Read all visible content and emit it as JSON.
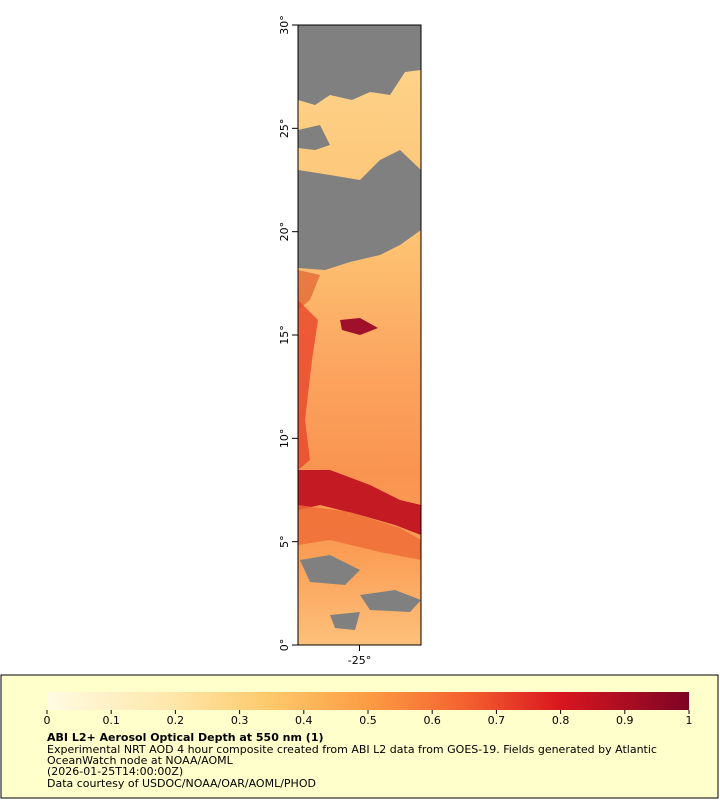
{
  "map": {
    "lat_range": [
      0,
      30
    ],
    "lon_range": [
      -28,
      -22
    ],
    "lat_ticks": [
      {
        "value": 0,
        "label": "0°"
      },
      {
        "value": 5,
        "label": "5°"
      },
      {
        "value": 10,
        "label": "10°"
      },
      {
        "value": 15,
        "label": "15°"
      },
      {
        "value": 20,
        "label": "20°"
      },
      {
        "value": 25,
        "label": "25°"
      },
      {
        "value": 30,
        "label": "30°"
      }
    ],
    "lon_ticks": [
      {
        "value": -25,
        "label": "-25°"
      }
    ]
  },
  "colorbar": {
    "range": [
      0,
      1
    ],
    "ticks": [
      0,
      0.1,
      0.2,
      0.3,
      0.4,
      0.5,
      0.6,
      0.7,
      0.8,
      0.9,
      1
    ]
  },
  "legend": {
    "title": "ABI L2+ Aerosol Optical Depth at 550 nm (1)",
    "lines": [
      "Experimental NRT AOD 4 hour composite created from ABI L2 data from GOES-19. Fields generated by Atlantic",
      "OceanWatch node at NOAA/AOML",
      "(2026-01-25T14:00:00Z)",
      "Data courtesy of USDOC/NOAA/OAR/AOML/PHOD"
    ]
  }
}
